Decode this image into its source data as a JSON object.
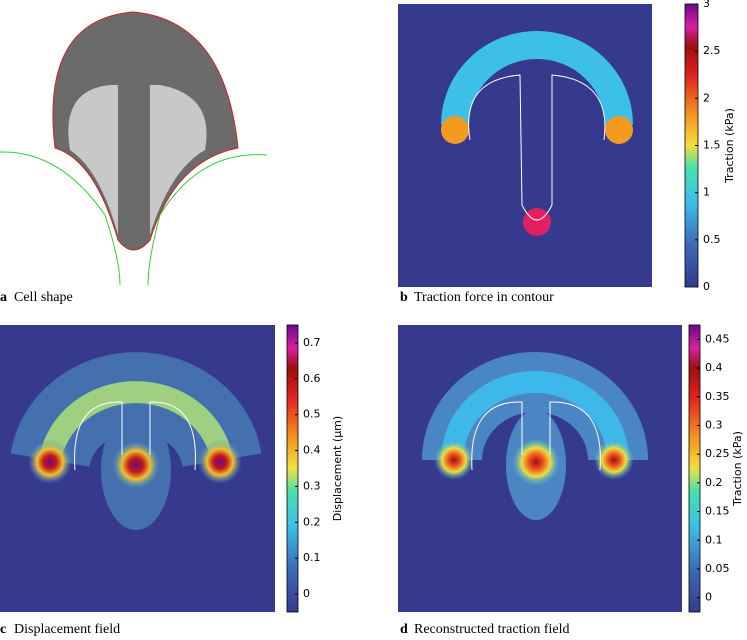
{
  "panels": [
    {
      "label": "a",
      "caption": "Cell shape"
    },
    {
      "label": "b",
      "caption": "Traction force in contour",
      "colorbar": {
        "label": "Traction (kPa)",
        "lim": [
          0,
          3
        ],
        "ticks": [
          0,
          0.5,
          1,
          1.5,
          2,
          2.5,
          3
        ]
      }
    },
    {
      "label": "c",
      "caption": "Displacement field",
      "colorbar": {
        "label": "Displacement (μm)",
        "lim": [
          -0.05,
          0.75
        ],
        "ticks": [
          0,
          0.1,
          0.2,
          0.3,
          0.4,
          0.5,
          0.6,
          0.7
        ]
      }
    },
    {
      "label": "d",
      "caption": "Reconstructed traction field",
      "colorbar": {
        "label": "Traction (kPa)",
        "lim": [
          -0.025,
          0.475
        ],
        "ticks": [
          0,
          0.05,
          0.1,
          0.15,
          0.2,
          0.25,
          0.3,
          0.35,
          0.4,
          0.45
        ]
      }
    }
  ]
}
